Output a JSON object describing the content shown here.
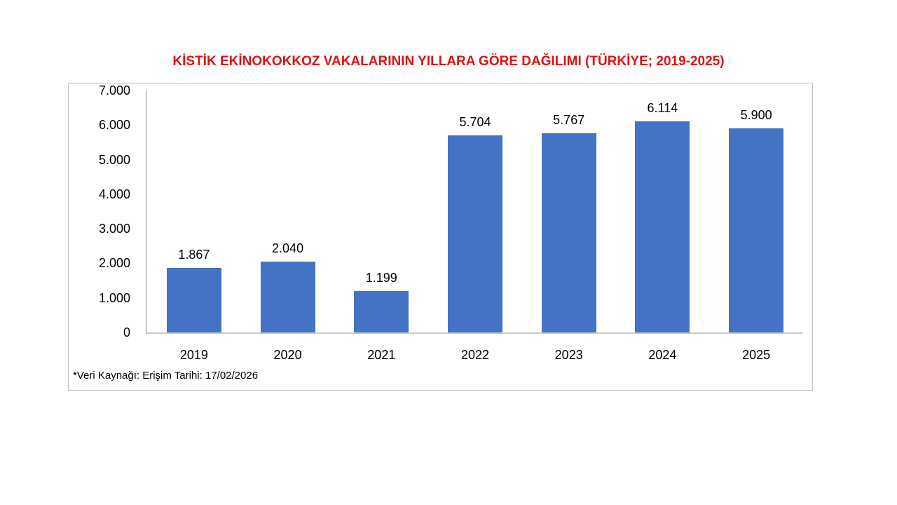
{
  "title": "KİSTİK EKİNOKOKKOZ VAKALARININ YILLARA GÖRE DAĞILIMI (TÜRKİYE; 2019-2025)",
  "footnote": "*Veri Kaynağı: Erişim Tarihi: 17/02/2026",
  "colors": {
    "title_text": "#df1111",
    "bar": "#4472c4",
    "axis_line": "#c9c9c9",
    "frame_border": "#bfbfbf",
    "label_text": "#000000",
    "background": "#ffffff"
  },
  "chart_data": {
    "type": "bar",
    "title": "KİSTİK EKİNOKOKKOZ VAKALARININ YILLARA GÖRE DAĞILIMI (TÜRKİYE; 2019-2025)",
    "categories": [
      "2019",
      "2020",
      "2021",
      "2022",
      "2023",
      "2024",
      "2025"
    ],
    "values": [
      1867,
      2040,
      1199,
      5704,
      5767,
      6114,
      5900
    ],
    "value_labels": [
      "1.867",
      "2.040",
      "1.199",
      "5.704",
      "5.767",
      "6.114",
      "5.900"
    ],
    "xlabel": "",
    "ylabel": "",
    "ylim": [
      0,
      7000
    ],
    "ytick_interval": 1000,
    "ytick_labels": [
      "0",
      "1.000",
      "2.000",
      "3.000",
      "4.000",
      "5.000",
      "6.000",
      "7.000"
    ],
    "grid": false,
    "legend": false,
    "number_format": "turkish-thousands-dot"
  }
}
